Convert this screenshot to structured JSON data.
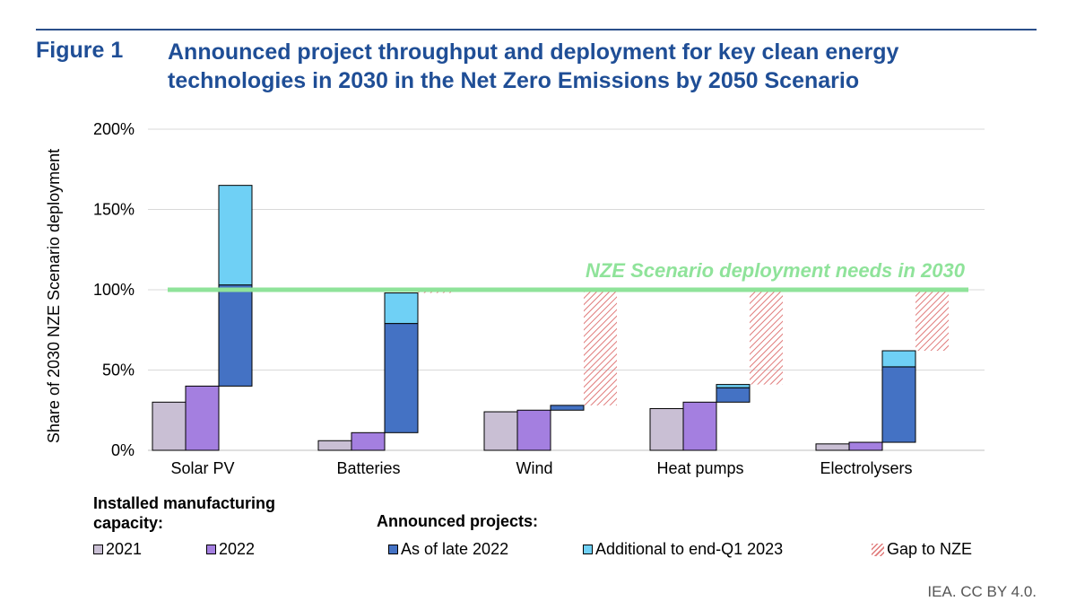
{
  "header": {
    "figure_label": "Figure 1",
    "title": "Announced project throughput and deployment for key clean energy technologies in 2030 in the Net Zero Emissions by 2050 Scenario"
  },
  "source": "IEA. CC BY 4.0.",
  "legend": {
    "group1_title": "Installed manufacturing capacity:",
    "group2_title": "Announced projects:",
    "items": {
      "y2021": "2021",
      "y2022": "2022",
      "late2022": "As of late 2022",
      "additional": "Additional to end-Q1 2023",
      "gap": "Gap to NZE"
    }
  },
  "colors": {
    "2021": "#c9bfd4",
    "2022": "#a47fe0",
    "late2022": "#4472c4",
    "additional": "#6fd0f5",
    "gap": "#e07a7a",
    "nze_line": "#8fe39a",
    "title": "#1f4e96"
  },
  "chart_data": {
    "type": "bar",
    "ylabel": "Share of 2030 NZE Scenario deployment",
    "ylim": [
      0,
      200
    ],
    "yticks": [
      "0%",
      "50%",
      "100%",
      "150%",
      "200%"
    ],
    "categories": [
      "Solar PV",
      "Batteries",
      "Wind",
      "Heat pumps",
      "Electrolysers"
    ],
    "installed_2021": [
      30,
      6,
      24,
      26,
      4
    ],
    "installed_2022": [
      40,
      11,
      25,
      30,
      5
    ],
    "announced": {
      "base": [
        40,
        11,
        25,
        30,
        5
      ],
      "late_2022_top": [
        103,
        79,
        28,
        39,
        52
      ],
      "additional_top": [
        165,
        98,
        28,
        41,
        62
      ]
    },
    "gap_to_nze": [
      [
        100,
        100
      ],
      [
        98,
        100
      ],
      [
        28,
        100
      ],
      [
        41,
        100
      ],
      [
        62,
        100
      ]
    ],
    "nze_line": {
      "value": 100,
      "label": "NZE Scenario deployment needs in 2030"
    },
    "grid": true
  }
}
